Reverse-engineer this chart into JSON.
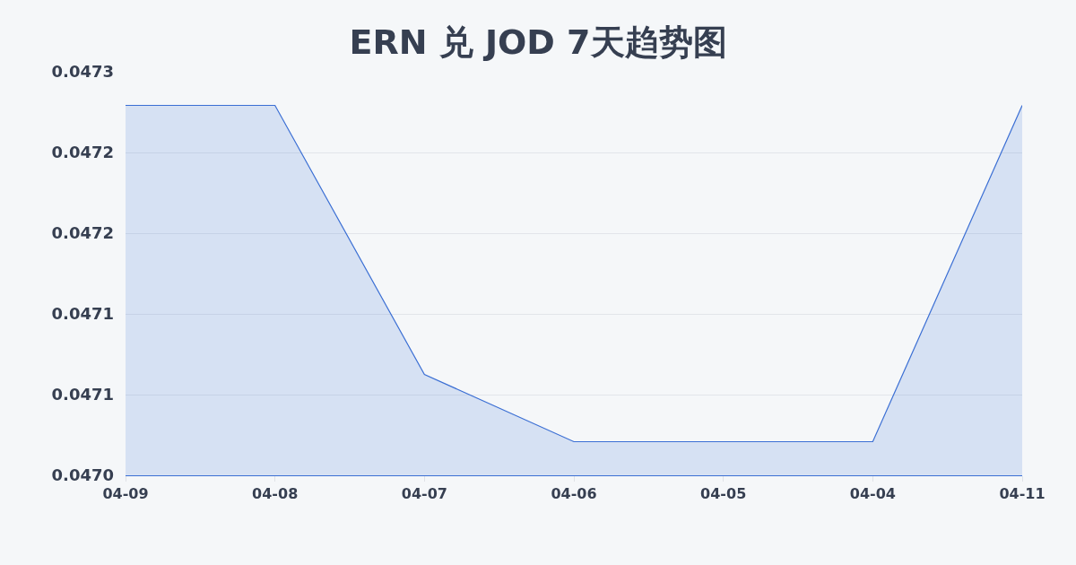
{
  "chart_data": {
    "type": "area",
    "title": "ERN 兑 JOD 7天趋势图",
    "categories": [
      "04-09",
      "04-08",
      "04-07",
      "04-06",
      "04-05",
      "04-04",
      "04-11"
    ],
    "series": [
      {
        "color": "#3b6fd4",
        "values": [
          0.047275,
          0.047275,
          0.047075,
          0.047025,
          0.047025,
          0.047025,
          0.047275
        ]
      }
    ],
    "ylim": [
      0.047,
      0.0473
    ],
    "yticks": [
      {
        "value": 0.047,
        "label": "0.0470"
      },
      {
        "value": 0.04706,
        "label": "0.0471"
      },
      {
        "value": 0.04712,
        "label": "0.0471"
      },
      {
        "value": 0.04718,
        "label": "0.0472"
      },
      {
        "value": 0.04724,
        "label": "0.0472"
      },
      {
        "value": 0.0473,
        "label": "0.0473"
      }
    ],
    "grid": "y"
  }
}
